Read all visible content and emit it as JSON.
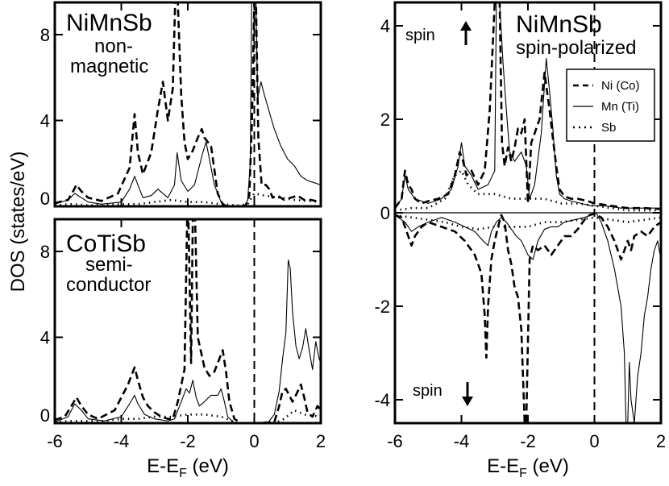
{
  "chart_data": [
    {
      "id": "top-left",
      "type": "line",
      "title": "NiMnSb",
      "subtitle_lines": [
        "non-",
        "magnetic"
      ],
      "xlim": [
        -6,
        2
      ],
      "ylim": [
        0,
        9.5
      ],
      "yticks": [
        0,
        4,
        8
      ],
      "xticks": [],
      "fermi_line_x": 0,
      "series": [
        {
          "name": "Ni (Co)",
          "style": "dashed",
          "x": [
            -6,
            -5.6,
            -5.45,
            -5.35,
            -5.2,
            -5,
            -4.6,
            -4.1,
            -3.75,
            -3.6,
            -3.5,
            -3.35,
            -3.1,
            -2.9,
            -2.75,
            -2.6,
            -2.45,
            -2.38,
            -2.3,
            -2.2,
            -2.1,
            -2.0,
            -1.85,
            -1.7,
            -1.58,
            -1.5,
            -1.3,
            -1.1,
            -0.95,
            -0.85,
            -0.6,
            -0.4,
            -0.25,
            -0.15,
            -0.07,
            0,
            0.05,
            0.12,
            0.22,
            0.35,
            0.45,
            0.55,
            0.7,
            0.9,
            1.1,
            1.3,
            1.5,
            1.7,
            2.0
          ],
          "values": [
            0.15,
            0.3,
            0.7,
            1.0,
            0.7,
            0.4,
            0.25,
            0.6,
            1.8,
            4.3,
            2.5,
            1.5,
            2.5,
            4.5,
            5.8,
            4.0,
            5.5,
            9.5,
            9.5,
            5.2,
            3.0,
            2.2,
            2.6,
            3.2,
            3.6,
            3.2,
            2.8,
            0.6,
            0.1,
            0.02,
            0,
            0,
            0.05,
            0.5,
            4,
            9.5,
            9.5,
            3.2,
            1.0,
            1.0,
            0.8,
            0.4,
            0.5,
            0.3,
            0.4,
            0.5,
            0.3,
            0.3,
            0.2
          ]
        },
        {
          "name": "Mn (Ti)",
          "style": "solid",
          "x": [
            -6,
            -5.6,
            -5.4,
            -5.2,
            -5.0,
            -4.6,
            -4.0,
            -3.75,
            -3.6,
            -3.5,
            -3.35,
            -3.1,
            -2.9,
            -2.6,
            -2.4,
            -2.32,
            -2.2,
            -2.0,
            -1.8,
            -1.55,
            -1.45,
            -1.35,
            -1.2,
            -1.0,
            -0.8,
            -0.5,
            -0.3,
            -0.2,
            -0.12,
            -0.08,
            -0.05,
            0,
            0.05,
            0.1,
            0.2,
            0.3,
            0.45,
            0.6,
            0.8,
            1.0,
            1.2,
            1.4,
            1.6,
            1.8,
            2.0
          ],
          "values": [
            0.1,
            0.3,
            0.6,
            0.4,
            0.2,
            0.1,
            0.2,
            0.8,
            1.4,
            1.0,
            0.4,
            0.5,
            0.8,
            0.4,
            1.0,
            2.5,
            1.2,
            0.7,
            1.0,
            2.5,
            3.0,
            2.2,
            1.0,
            0.2,
            0,
            0,
            0,
            0.3,
            2,
            9.5,
            9.5,
            9.5,
            9.5,
            5.0,
            5.8,
            5.2,
            4.4,
            3.6,
            2.8,
            2.2,
            1.9,
            1.4,
            1.2,
            1.1,
            1.0
          ]
        },
        {
          "name": "Sb",
          "style": "dotted",
          "x": [
            -6,
            -5.5,
            -5,
            -4,
            -3.5,
            -3,
            -2.5,
            -2,
            -1.5,
            -1,
            -0.5,
            -0.2,
            0,
            0.3,
            0.8,
            1.2,
            2.0
          ],
          "values": [
            0.05,
            0.1,
            0.05,
            0.1,
            0.1,
            0.2,
            0.3,
            0.2,
            0.2,
            0.1,
            0.05,
            0.1,
            0.6,
            0.5,
            0.4,
            0.3,
            0.2
          ]
        }
      ]
    },
    {
      "id": "bottom-left",
      "type": "line",
      "title": "CoTiSb",
      "subtitle_lines": [
        "semi-",
        "conductor"
      ],
      "xlim": [
        -6,
        2
      ],
      "ylim": [
        0,
        9.5
      ],
      "yticks": [
        0,
        4,
        8
      ],
      "xticks": [
        -6,
        -4,
        -2,
        0,
        2
      ],
      "xlabel_main": "E-E",
      "xlabel_sub": "F",
      "xlabel_unit": " (eV)",
      "fermi_line_x": 0,
      "series": [
        {
          "name": "Ni (Co)",
          "style": "dashed",
          "x": [
            -6,
            -5.7,
            -5.5,
            -5.35,
            -5.2,
            -5.0,
            -4.7,
            -4.2,
            -3.8,
            -3.6,
            -3.5,
            -3.35,
            -3.2,
            -3.0,
            -2.8,
            -2.6,
            -2.45,
            -2.3,
            -2.1,
            -2.02,
            -1.98,
            -1.9,
            -1.85,
            -1.78,
            -1.7,
            -1.5,
            -1.35,
            -1.2,
            -1.05,
            -0.95,
            -0.85,
            -0.75,
            -0.6,
            -0.4,
            -0.2,
            0,
            0.6,
            0.75,
            0.85,
            0.95,
            1.05,
            1.15,
            1.25,
            1.4,
            1.5,
            1.6,
            1.75,
            1.9,
            2.0
          ],
          "values": [
            0.15,
            0.3,
            0.8,
            1.2,
            0.8,
            0.4,
            0.2,
            0.6,
            1.8,
            2.6,
            2.0,
            1.2,
            0.8,
            0.5,
            0.3,
            0.2,
            0.2,
            1.0,
            2.5,
            9.5,
            9.5,
            2.8,
            9.5,
            9.5,
            4.0,
            2.6,
            2.2,
            2.4,
            3.0,
            3.4,
            2.4,
            1.0,
            0.2,
            0,
            0,
            0,
            0.05,
            0.8,
            1.5,
            1.6,
            1.3,
            1.0,
            1.3,
            1.8,
            1.2,
            0.5,
            0.3,
            0.8,
            0.6
          ]
        },
        {
          "name": "Mn (Ti)",
          "style": "solid",
          "x": [
            -6,
            -5.6,
            -5.4,
            -5.2,
            -5.0,
            -4.5,
            -4.0,
            -3.75,
            -3.6,
            -3.5,
            -3.3,
            -3.0,
            -2.6,
            -2.4,
            -2.2,
            -2.05,
            -1.95,
            -1.85,
            -1.75,
            -1.65,
            -1.5,
            -1.3,
            -1.1,
            -1.0,
            -0.9,
            -0.8,
            -0.6,
            -0.4,
            -0.2,
            0,
            0.4,
            0.6,
            0.75,
            0.85,
            0.95,
            1.02,
            1.08,
            1.15,
            1.25,
            1.35,
            1.45,
            1.55,
            1.65,
            1.75,
            1.85,
            1.95,
            2.0
          ],
          "values": [
            0.05,
            0.3,
            0.9,
            0.6,
            0.2,
            0.1,
            0.3,
            0.9,
            1.3,
            0.9,
            0.4,
            0.2,
            0.1,
            0.2,
            1.0,
            1.6,
            1.4,
            2.0,
            1.2,
            0.8,
            1.0,
            1.3,
            1.3,
            1.6,
            1.0,
            0.3,
            0,
            0,
            0,
            0,
            0,
            0.4,
            1.5,
            3.0,
            4.2,
            7.6,
            7.2,
            5.2,
            3.6,
            3.0,
            3.5,
            4.4,
            3.4,
            2.5,
            3.8,
            3.0,
            2.8
          ]
        },
        {
          "name": "Sb",
          "style": "dotted",
          "x": [
            -6,
            -5.5,
            -5,
            -4.5,
            -4,
            -3.5,
            -3,
            -2.5,
            -2,
            -1.5,
            -1,
            -0.5,
            0,
            0.6,
            0.9,
            1.2,
            1.5,
            2.0
          ],
          "values": [
            0.05,
            0.1,
            0.1,
            0.1,
            0.2,
            0.2,
            0.3,
            0.3,
            0.4,
            0.4,
            0.3,
            0,
            0,
            0,
            0.2,
            0.6,
            0.4,
            0.3
          ]
        }
      ]
    },
    {
      "id": "right",
      "type": "line",
      "title": "NiMnSb",
      "subtitle_lines": [
        "spin-polarized"
      ],
      "xlim": [
        -6,
        2
      ],
      "ylim": [
        -4.5,
        4.5
      ],
      "yticks": [
        -4,
        -2,
        0,
        2,
        4
      ],
      "xticks": [
        -6,
        -4,
        -2,
        0,
        2
      ],
      "xlabel_main": "E-E",
      "xlabel_sub": "F",
      "xlabel_unit": " (eV)",
      "fermi_line_x": 0,
      "zero_line_y": 0,
      "spin_up_label": "spin",
      "spin_down_label": "spin",
      "legend": {
        "position": "top-right",
        "entries": [
          "Ni (Co)",
          "Mn (Ti)",
          "Sb"
        ]
      },
      "series": [
        {
          "name": "Ni (Co) up",
          "style": "dashed",
          "x": [
            -6,
            -5.8,
            -5.7,
            -5.6,
            -5.5,
            -5.4,
            -5.2,
            -5.0,
            -4.7,
            -4.4,
            -4.2,
            -4.05,
            -3.95,
            -3.85,
            -3.7,
            -3.5,
            -3.3,
            -3.15,
            -3.0,
            -2.95,
            -2.85,
            -2.78,
            -2.7,
            -2.6,
            -2.5,
            -2.4,
            -2.3,
            -2.2,
            -2.1,
            -2.0,
            -1.9,
            -1.8,
            -1.65,
            -1.5,
            -1.35,
            -1.25,
            -1.15,
            -1.05,
            -0.9,
            -0.7,
            -0.5,
            -0.2,
            0,
            0.5,
            1.0,
            1.5,
            2.0
          ],
          "values": [
            0.1,
            0.3,
            0.9,
            0.6,
            0.5,
            0.3,
            0.2,
            0.25,
            0.3,
            0.4,
            0.8,
            1.3,
            1.1,
            0.8,
            0.9,
            0.6,
            0.9,
            2.2,
            4.5,
            4.5,
            4.5,
            1.5,
            1.0,
            1.4,
            1.1,
            1.4,
            1.8,
            1.7,
            2.0,
            0.2,
            1.5,
            1.7,
            2.0,
            3.0,
            2.2,
            1.6,
            1.0,
            0.5,
            0.35,
            0.3,
            0.3,
            0.25,
            0.2,
            0.15,
            0.1,
            0.1,
            0.08
          ]
        },
        {
          "name": "Mn (Ti) up",
          "style": "solid",
          "x": [
            -6,
            -5.8,
            -5.7,
            -5.6,
            -5.4,
            -5.0,
            -4.6,
            -4.3,
            -4.1,
            -4.0,
            -3.9,
            -3.7,
            -3.5,
            -3.2,
            -3.0,
            -2.95,
            -2.85,
            -2.75,
            -2.65,
            -2.55,
            -2.4,
            -2.2,
            -2.05,
            -1.95,
            -1.8,
            -1.6,
            -1.45,
            -1.35,
            -1.25,
            -1.15,
            -1.05,
            -0.9,
            -0.7,
            -0.4,
            -0.1,
            0.3,
            0.8,
            1.3,
            2.0
          ],
          "values": [
            0.1,
            0.3,
            0.8,
            0.5,
            0.3,
            0.2,
            0.3,
            0.5,
            1.0,
            1.5,
            1.0,
            0.8,
            0.5,
            0.6,
            0.9,
            4.5,
            4.5,
            3.2,
            2.2,
            1.3,
            1.1,
            1.3,
            1.0,
            0.3,
            0.6,
            1.7,
            3.3,
            2.6,
            1.8,
            0.8,
            0.4,
            0.3,
            0.25,
            0.2,
            0.15,
            0.15,
            0.1,
            0.1,
            0.1
          ]
        },
        {
          "name": "Sb up",
          "style": "dotted",
          "x": [
            -6,
            -5.5,
            -5,
            -4.5,
            -4.2,
            -4.0,
            -3.8,
            -3.5,
            -3,
            -2.5,
            -2,
            -1.5,
            -1,
            -0.5,
            0,
            0.5,
            1,
            1.5,
            2.0
          ],
          "values": [
            0.05,
            0.1,
            0.1,
            0.3,
            0.8,
            0.9,
            0.6,
            0.4,
            0.4,
            0.3,
            0.3,
            0.3,
            0.2,
            0.2,
            0.15,
            0.1,
            0.05,
            0.05,
            0.05
          ]
        },
        {
          "name": "Ni (Co) down",
          "style": "dashed",
          "x": [
            -6,
            -5.8,
            -5.6,
            -5.5,
            -5.4,
            -5.2,
            -5.0,
            -4.6,
            -4.2,
            -3.9,
            -3.6,
            -3.4,
            -3.3,
            -3.25,
            -3.2,
            -3.1,
            -3.0,
            -2.9,
            -2.8,
            -2.7,
            -2.6,
            -2.5,
            -2.4,
            -2.3,
            -2.2,
            -2.1,
            -2.05,
            -1.95,
            -1.85,
            -1.7,
            -1.5,
            -1.3,
            -1.1,
            -0.9,
            -0.7,
            -0.5,
            -0.3,
            -0.15,
            0,
            0.2,
            0.4,
            0.6,
            0.8,
            1.0,
            1.1,
            1.2,
            1.4,
            1.6,
            1.8,
            2.0
          ],
          "values": [
            -0.05,
            -0.1,
            -0.5,
            -0.7,
            -0.5,
            -0.3,
            -0.2,
            -0.3,
            -0.4,
            -0.6,
            -0.9,
            -1.3,
            -2.2,
            -3.1,
            -2.0,
            -1.0,
            -0.6,
            -0.3,
            -0.05,
            -0.2,
            -0.8,
            -1.1,
            -1.6,
            -1.8,
            -2.5,
            -4.5,
            -4.5,
            -1.0,
            -0.7,
            -0.8,
            -0.7,
            -0.9,
            -0.7,
            -0.5,
            -0.5,
            -0.35,
            -0.15,
            -0.05,
            -0.02,
            -0.1,
            -0.3,
            -0.6,
            -1.0,
            -0.6,
            -0.8,
            -0.5,
            -0.4,
            -0.5,
            -0.3,
            -0.2
          ]
        },
        {
          "name": "Mn (Ti) down",
          "style": "solid",
          "x": [
            -6,
            -5.7,
            -5.5,
            -5.3,
            -5.0,
            -4.6,
            -4.2,
            -3.9,
            -3.6,
            -3.35,
            -3.2,
            -3.1,
            -2.95,
            -2.8,
            -2.65,
            -2.5,
            -2.35,
            -2.2,
            -2.0,
            -1.85,
            -1.7,
            -1.5,
            -1.3,
            -1.1,
            -0.9,
            -0.6,
            -0.3,
            -0.1,
            0.05,
            0.2,
            0.4,
            0.6,
            0.8,
            0.9,
            0.95,
            1.0,
            1.05,
            1.1,
            1.2,
            1.3,
            1.4,
            1.5,
            1.6,
            1.7,
            1.8,
            1.9,
            2.0
          ],
          "values": [
            -0.05,
            -0.2,
            -0.4,
            -0.3,
            -0.2,
            -0.1,
            -0.2,
            -0.3,
            -0.4,
            -0.6,
            -0.7,
            -0.4,
            -0.2,
            -0.1,
            -0.2,
            -0.35,
            -0.5,
            -0.6,
            -0.9,
            -1.0,
            -0.6,
            -0.35,
            -0.3,
            -0.3,
            -0.2,
            -0.15,
            -0.1,
            -0.05,
            0,
            -0.2,
            -0.6,
            -1.2,
            -2.0,
            -3.0,
            -4.5,
            -4.5,
            -3.2,
            -4.0,
            -4.5,
            -3.5,
            -3.0,
            -2.2,
            -1.8,
            -1.2,
            -0.8,
            -0.6,
            -1.0
          ]
        },
        {
          "name": "Sb down",
          "style": "dotted",
          "x": [
            -6,
            -5.5,
            -5,
            -4.5,
            -4,
            -3.5,
            -3,
            -2.5,
            -2,
            -1.5,
            -1,
            -0.5,
            0,
            0.5,
            1.0,
            1.5,
            2.0
          ],
          "values": [
            -0.05,
            -0.1,
            -0.15,
            -0.2,
            -0.3,
            -0.35,
            -0.3,
            -0.3,
            -0.3,
            -0.2,
            -0.2,
            -0.15,
            -0.1,
            -0.15,
            -0.2,
            -0.15,
            -0.1
          ]
        }
      ]
    }
  ],
  "shared": {
    "ylabel": "DOS (states/eV)"
  }
}
